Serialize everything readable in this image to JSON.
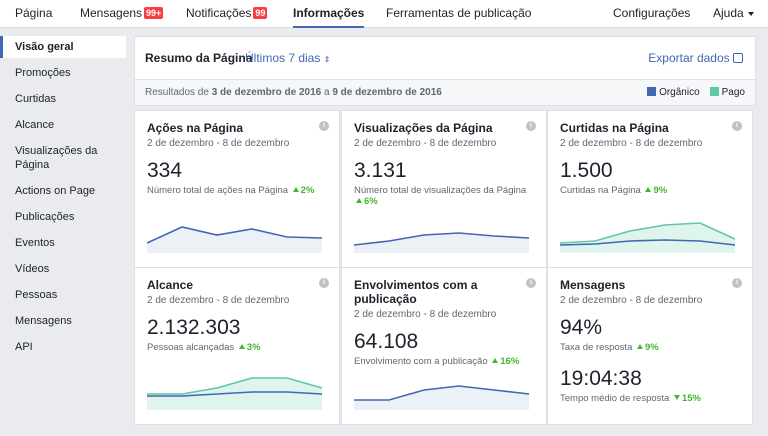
{
  "nav": {
    "items": [
      {
        "label": "Página"
      },
      {
        "label": "Mensagens",
        "badge": "99+"
      },
      {
        "label": "Notificações",
        "badge": "99"
      },
      {
        "label": "Informações"
      },
      {
        "label": "Ferramentas de publicação"
      }
    ],
    "active": 3,
    "right": [
      "Configurações",
      "Ajuda"
    ]
  },
  "sidebar": {
    "items": [
      "Visão geral",
      "Promoções",
      "Curtidas",
      "Alcance",
      "Visualizações da Página",
      "Actions on Page",
      "Publicações",
      "Eventos",
      "Vídeos",
      "Pessoas",
      "Mensagens",
      "API"
    ],
    "active": 0
  },
  "summary": {
    "title": "Resumo da Página",
    "period": "Últimos 7 dias",
    "export": "Exportar dados",
    "results": [
      "Resultados de ",
      "3 de dezembro de 2016",
      " a ",
      "9 de dezembro de 2016"
    ],
    "legend": [
      {
        "name": "Orgânico",
        "color": "#4267b2"
      },
      {
        "name": "Pago",
        "color": "#5fc8a4"
      }
    ]
  },
  "cards": [
    {
      "title": "Ações na Página",
      "dates": "2 de dezembro - 8 de dezembro",
      "metrics": [
        {
          "value": "334",
          "caption": "Número total de ações na Página",
          "change": "2%",
          "direction": "up"
        }
      ]
    },
    {
      "title": "Visualizações da Página",
      "dates": "2 de dezembro - 8 de dezembro",
      "metrics": [
        {
          "value": "3.131",
          "caption": "Número total de visualizações da Página",
          "change": "6%",
          "direction": "up"
        }
      ]
    },
    {
      "title": "Curtidas na Página",
      "dates": "2 de dezembro - 8 de dezembro",
      "metrics": [
        {
          "value": "1.500",
          "caption": "Curtidas na Página",
          "change": "9%",
          "direction": "up"
        }
      ]
    },
    {
      "title": "Alcance",
      "dates": "2 de dezembro - 8 de dezembro",
      "metrics": [
        {
          "value": "2.132.303",
          "caption": "Pessoas alcançadas",
          "change": "3%",
          "direction": "up"
        }
      ]
    },
    {
      "title": "Envolvimentos com a publicação",
      "dates": "2 de dezembro - 8 de dezembro",
      "metrics": [
        {
          "value": "64.108",
          "caption": "Envolvimento com a publicação",
          "change": "16%",
          "direction": "up"
        }
      ]
    },
    {
      "title": "Mensagens",
      "dates": "2 de dezembro - 8 de dezembro",
      "metrics": [
        {
          "value": "94%",
          "caption": "Taxa de resposta",
          "change": "9%",
          "direction": "up"
        },
        {
          "value": "19:04:38",
          "caption": "Tempo médio de resposta",
          "change": "15%",
          "direction": "down"
        }
      ]
    }
  ]
}
